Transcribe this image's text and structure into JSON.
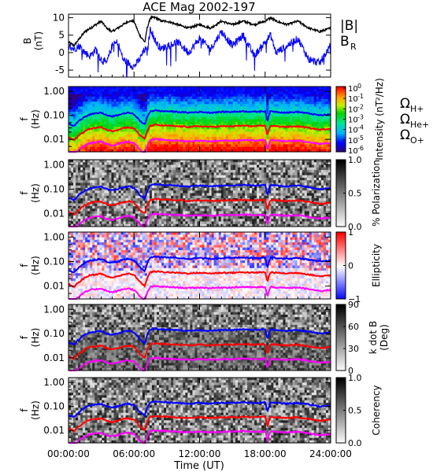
{
  "figure": {
    "title": "ACE Mag 2002-197",
    "xlabel": "Time (UT)"
  },
  "chart_data": [
    {
      "type": "line",
      "panel": "magnetic-field",
      "ylabel_line1": "B",
      "ylabel_line2": "(nT)",
      "ylim": [
        -7,
        11
      ],
      "yticks": [
        "10",
        "5",
        "0",
        "-5"
      ],
      "ytick_values": [
        10,
        5,
        0,
        -5
      ],
      "xlim": [
        0,
        24
      ],
      "series": [
        {
          "name": "|B|",
          "color": "#000000",
          "x": [
            0,
            0.5,
            1,
            1.5,
            2,
            2.5,
            3,
            3.5,
            4,
            4.5,
            5,
            5.5,
            6,
            6.5,
            7,
            7.2,
            7.5,
            8,
            8.5,
            9,
            10,
            11,
            12,
            13,
            14,
            15,
            16,
            17,
            18,
            18.5,
            19,
            20,
            21,
            22,
            23,
            24
          ],
          "values": [
            3,
            2,
            4,
            6,
            7,
            8,
            9,
            7,
            6,
            7,
            8,
            9,
            9,
            5,
            3,
            7,
            10,
            10,
            9,
            9,
            8,
            7,
            8,
            7,
            9,
            8,
            9,
            8,
            9,
            10,
            9,
            8,
            9,
            7,
            6,
            7
          ]
        },
        {
          "name": "B",
          "subscript": "R",
          "color": "#0000ff",
          "x": [
            0,
            0.5,
            1,
            1.5,
            2,
            2.5,
            3,
            3.5,
            4,
            4.5,
            5,
            5.5,
            6,
            6.5,
            7,
            7.2,
            7.5,
            8,
            8.5,
            9,
            10,
            11,
            12,
            13,
            14,
            15,
            16,
            17,
            18,
            18.5,
            19,
            20,
            21,
            22,
            23,
            24
          ],
          "values": [
            2,
            1,
            2,
            0,
            -1,
            1,
            -2,
            -3,
            2,
            3,
            -2,
            -3,
            -4,
            -2,
            1,
            0,
            7,
            3,
            1,
            2,
            3,
            0,
            4,
            1,
            6,
            2,
            5,
            -1,
            3,
            5,
            0,
            2,
            4,
            -2,
            -3,
            2
          ]
        }
      ]
    },
    {
      "type": "heatmap",
      "panel": "intensity",
      "colormap": "rainbow",
      "ylabel_line1": "f",
      "ylabel_line2": "(Hz)",
      "yscale": "log",
      "ylim": [
        0.003,
        1.6
      ],
      "yticks": [
        "1.00",
        "0.10",
        "0.01"
      ],
      "ytick_values": [
        1,
        0.1,
        0.01
      ],
      "colorbar_label": "Intensity (nT²/Hz)",
      "colorbar_range": [
        "10^-6",
        "10^0"
      ],
      "colorbar_ticks": [
        {
          "base": "10",
          "exp": "0"
        },
        {
          "base": "10",
          "exp": "-1"
        },
        {
          "base": "10",
          "exp": "-2"
        },
        {
          "base": "10",
          "exp": "-3"
        },
        {
          "base": "10",
          "exp": "-4"
        },
        {
          "base": "10",
          "exp": "-5"
        },
        {
          "base": "10",
          "exp": "-6"
        }
      ],
      "legend": [
        {
          "symbol": "Ω",
          "subscript": "H+",
          "color": "#0000ff"
        },
        {
          "symbol": "Ω",
          "subscript": "He+",
          "color": "#ff0000"
        },
        {
          "symbol": "Ω",
          "subscript": "O+",
          "color": "#ff00ff"
        }
      ]
    },
    {
      "type": "heatmap",
      "panel": "polarization",
      "colormap": "gray",
      "ylabel_line1": "f",
      "ylabel_line2": "(Hz)",
      "yscale": "log",
      "ylim": [
        0.003,
        1.6
      ],
      "yticks": [
        "1.00",
        "0.10",
        "0.01"
      ],
      "ytick_values": [
        1,
        0.1,
        0.01
      ],
      "colorbar_label": "% Polarization",
      "colorbar_range": [
        0,
        1
      ],
      "colorbar_ticks": [
        "1.0",
        "0.5",
        "0.0"
      ]
    },
    {
      "type": "heatmap",
      "panel": "ellipticity",
      "colormap": "blue-white-red",
      "ylabel_line1": "f",
      "ylabel_line2": "(Hz)",
      "yscale": "log",
      "ylim": [
        0.003,
        1.6
      ],
      "yticks": [
        "1.00",
        "0.10",
        "0.01"
      ],
      "ytick_values": [
        1,
        0.1,
        0.01
      ],
      "colorbar_label": "Ellipticity",
      "colorbar_range": [
        -1,
        1
      ],
      "colorbar_ticks": [
        "1",
        "0",
        "−1"
      ]
    },
    {
      "type": "heatmap",
      "panel": "kdotb",
      "colormap": "gray",
      "ylabel_line1": "f",
      "ylabel_line2": "(Hz)",
      "yscale": "log",
      "ylim": [
        0.003,
        1.6
      ],
      "yticks": [
        "1.00",
        "0.10",
        "0.01"
      ],
      "ytick_values": [
        1,
        0.1,
        0.01
      ],
      "colorbar_label": "k dot B",
      "colorbar_label2": "(Deg)",
      "colorbar_range": [
        0,
        90
      ],
      "colorbar_ticks": [
        "90",
        "60",
        "30",
        "0"
      ]
    },
    {
      "type": "heatmap",
      "panel": "coherency",
      "colormap": "gray",
      "ylabel_line1": "f",
      "ylabel_line2": "(Hz)",
      "yscale": "log",
      "ylim": [
        0.003,
        1.6
      ],
      "yticks": [
        "1.00",
        "0.10",
        "0.01"
      ],
      "ytick_values": [
        1,
        0.1,
        0.01
      ],
      "colorbar_label": "Coherency",
      "colorbar_range": [
        0,
        1
      ],
      "colorbar_ticks": [
        "1.0",
        "0.5",
        "0.0"
      ]
    }
  ],
  "gyrofrequency_curves": {
    "x": [
      0,
      0.5,
      1,
      1.5,
      2,
      2.5,
      3,
      3.5,
      4,
      4.5,
      5,
      5.5,
      6,
      6.5,
      7,
      7.5,
      8,
      8.5,
      9,
      10,
      11,
      12,
      13,
      14,
      15,
      16,
      17,
      18,
      18.2,
      18.5,
      19,
      20,
      21,
      22,
      23,
      24
    ],
    "H+": [
      0.045,
      0.035,
      0.06,
      0.09,
      0.11,
      0.12,
      0.13,
      0.1,
      0.09,
      0.1,
      0.12,
      0.13,
      0.11,
      0.06,
      0.04,
      0.15,
      0.16,
      0.15,
      0.15,
      0.14,
      0.13,
      0.14,
      0.13,
      0.14,
      0.14,
      0.15,
      0.14,
      0.15,
      0.05,
      0.15,
      0.14,
      0.13,
      0.14,
      0.12,
      0.1,
      0.11
    ],
    "He+": [
      0.012,
      0.009,
      0.015,
      0.022,
      0.028,
      0.03,
      0.032,
      0.025,
      0.022,
      0.025,
      0.03,
      0.032,
      0.028,
      0.015,
      0.01,
      0.037,
      0.04,
      0.038,
      0.037,
      0.035,
      0.033,
      0.035,
      0.033,
      0.035,
      0.035,
      0.037,
      0.035,
      0.037,
      0.013,
      0.037,
      0.035,
      0.033,
      0.035,
      0.03,
      0.025,
      0.028
    ],
    "O+": [
      0.003,
      0.0023,
      0.0038,
      0.0056,
      0.007,
      0.0075,
      0.008,
      0.0063,
      0.0056,
      0.0063,
      0.0075,
      0.008,
      0.007,
      0.0038,
      0.0025,
      0.0093,
      0.01,
      0.0095,
      0.0093,
      0.0088,
      0.0083,
      0.0088,
      0.0083,
      0.0088,
      0.0088,
      0.0093,
      0.0088,
      0.0093,
      0.0033,
      0.0093,
      0.0088,
      0.0083,
      0.0088,
      0.0075,
      0.0063,
      0.007
    ]
  },
  "time_axis": {
    "tick_values": [
      0,
      6,
      12,
      18,
      24
    ],
    "tick_labels": [
      "00:00:00",
      "06:00:00",
      "12:00:00",
      "18:00:00",
      "24:00:00"
    ]
  },
  "colors": {
    "H+": "#0000ff",
    "He+": "#ff0000",
    "O+": "#ff00ff"
  }
}
